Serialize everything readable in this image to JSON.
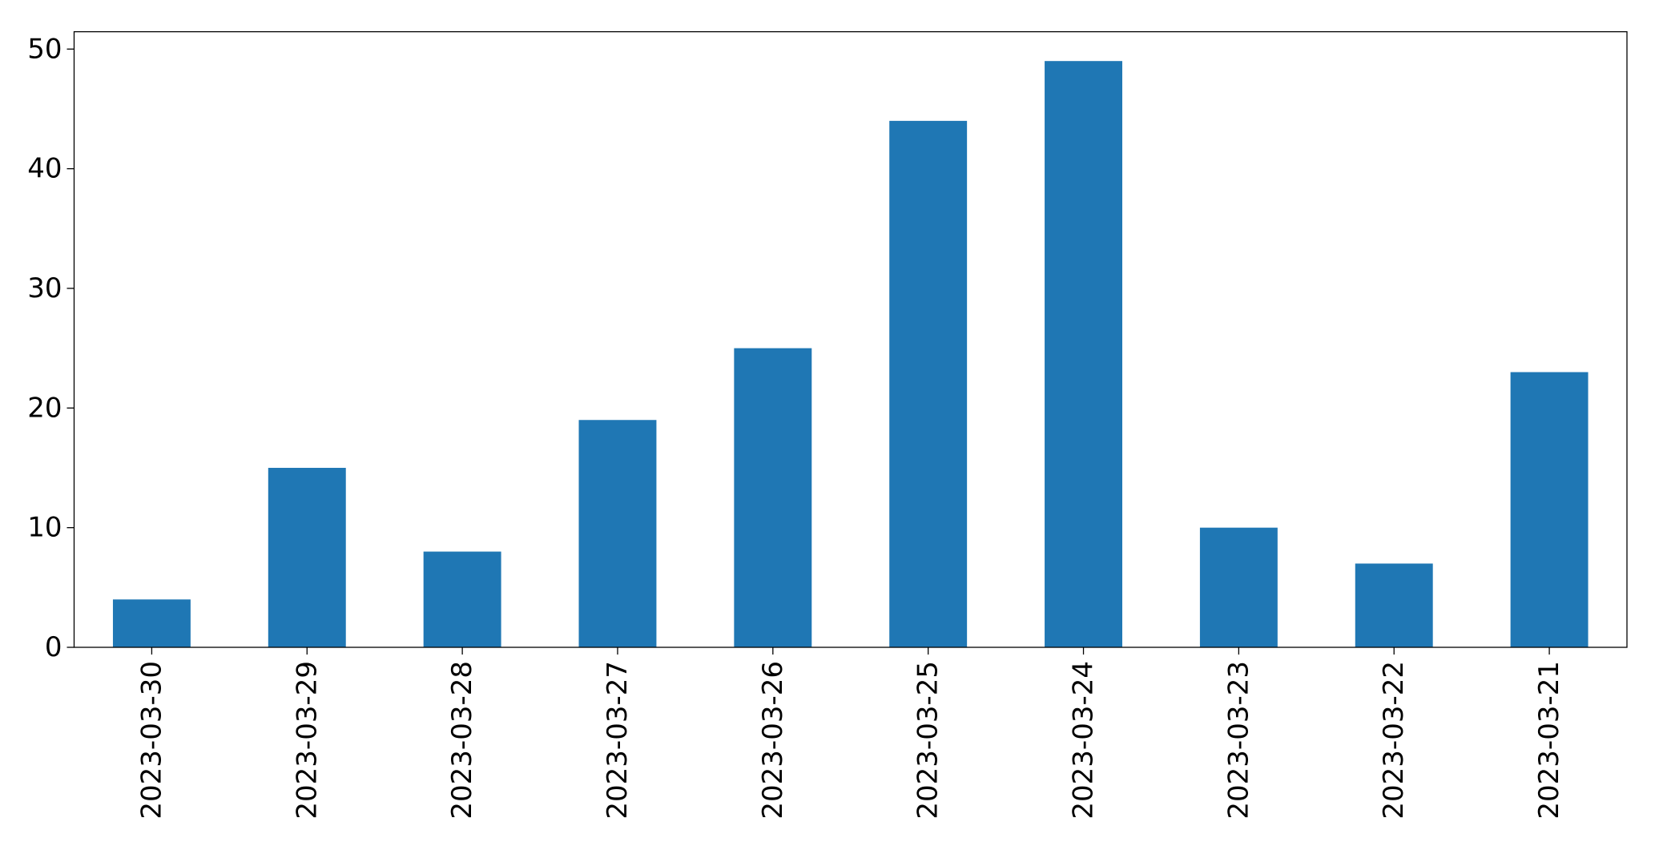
{
  "chart_data": {
    "type": "bar",
    "categories": [
      "2023-03-30",
      "2023-03-29",
      "2023-03-28",
      "2023-03-27",
      "2023-03-26",
      "2023-03-25",
      "2023-03-24",
      "2023-03-23",
      "2023-03-22",
      "2023-03-21"
    ],
    "values": [
      4,
      15,
      8,
      19,
      25,
      44,
      49,
      10,
      7,
      23
    ],
    "color": "#1f77b4",
    "ylim": [
      0,
      51.45
    ],
    "yticks": [
      0,
      10,
      20,
      30,
      40,
      50
    ],
    "grid": false
  }
}
